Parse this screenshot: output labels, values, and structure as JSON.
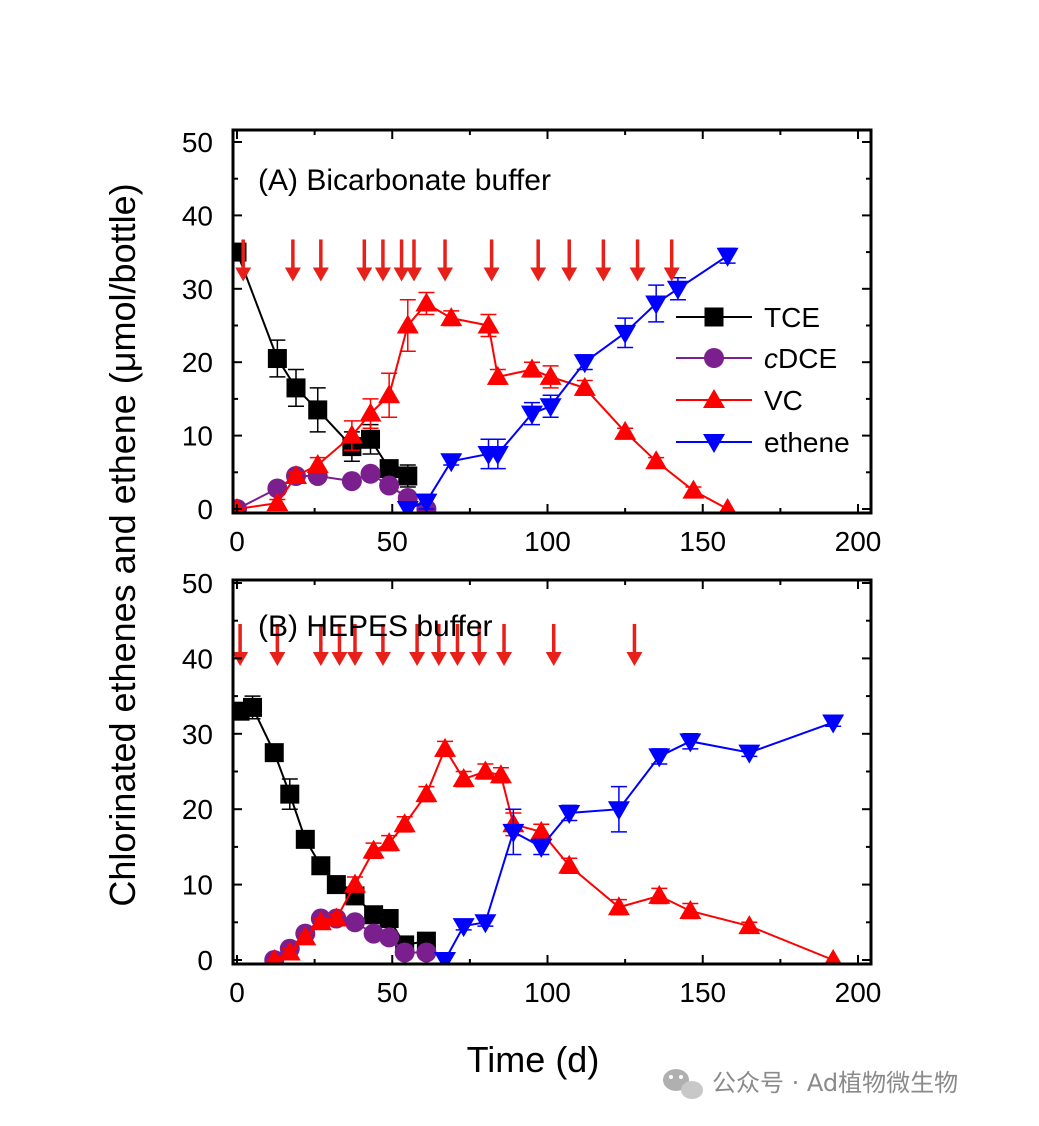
{
  "chart_data": [
    {
      "type": "line",
      "title": "(A) Bicarbonate buffer",
      "xlabel": "Time (d)",
      "ylabel": "Chlorinated ethenes and ethene (μmol/bottle)",
      "xlim": [
        0,
        200
      ],
      "ylim": [
        0,
        50
      ],
      "xticks": [
        0,
        50,
        100,
        150,
        200
      ],
      "yticks": [
        0,
        10,
        20,
        30,
        40,
        50
      ],
      "legend_position": "right",
      "series": [
        {
          "name": "TCE",
          "marker": "square",
          "color": "#000000",
          "x": [
            0,
            13,
            19,
            26,
            37,
            43,
            49,
            55
          ],
          "y": [
            35,
            20.5,
            16.5,
            13.5,
            8.5,
            9.5,
            5.5,
            4.5
          ],
          "err": [
            1,
            2.5,
            2.5,
            3,
            2,
            2,
            1,
            1.5
          ]
        },
        {
          "name": "cDCE",
          "marker": "circle",
          "color": "#7b1f8e",
          "x": [
            0,
            13,
            19,
            26,
            37,
            43,
            49,
            55,
            61
          ],
          "y": [
            0,
            2.8,
            4.5,
            4.5,
            3.8,
            4.8,
            3.2,
            1.5,
            0
          ],
          "err": [
            0,
            0.5,
            0.5,
            0.5,
            0.5,
            0.5,
            0.5,
            0.5,
            0
          ]
        },
        {
          "name": "VC",
          "marker": "triangle-up",
          "color": "#ff0000",
          "x": [
            0,
            13,
            19,
            26,
            37,
            43,
            49,
            55,
            61,
            69,
            81,
            84,
            95,
            101,
            112,
            125,
            135,
            147,
            158
          ],
          "y": [
            0,
            0.8,
            4.5,
            6,
            10,
            13,
            15.5,
            25,
            28,
            26,
            25,
            18,
            19,
            18,
            16.5,
            10.5,
            6.5,
            2.5,
            0
          ],
          "err": [
            0,
            0.5,
            0.5,
            1,
            2,
            2,
            3,
            3.5,
            1.5,
            1,
            1.5,
            1,
            1,
            1.5,
            1,
            0.5,
            0.5,
            0.5,
            0
          ]
        },
        {
          "name": "ethene",
          "marker": "triangle-down",
          "color": "#0000ff",
          "x": [
            55,
            61,
            69,
            81,
            84,
            95,
            101,
            112,
            125,
            135,
            142,
            158
          ],
          "y": [
            0,
            1,
            6.5,
            7.5,
            7.5,
            13,
            14,
            20,
            24,
            28,
            30,
            34.5
          ],
          "err": [
            0,
            1,
            0.5,
            2,
            2,
            1.5,
            1.5,
            1,
            2,
            2.5,
            1.5,
            1
          ]
        }
      ],
      "arrows_x": [
        2,
        18,
        27,
        41,
        47,
        53,
        57,
        67,
        82,
        97,
        107,
        118,
        129,
        140
      ]
    },
    {
      "type": "line",
      "title": "(B) HEPES buffer",
      "xlabel": "Time (d)",
      "ylabel": "Chlorinated ethenes and ethene (μmol/bottle)",
      "xlim": [
        0,
        200
      ],
      "ylim": [
        0,
        50
      ],
      "xticks": [
        0,
        50,
        100,
        150,
        200
      ],
      "yticks": [
        0,
        10,
        20,
        30,
        40,
        50
      ],
      "series": [
        {
          "name": "TCE",
          "marker": "square",
          "color": "#000000",
          "x": [
            1,
            5,
            12,
            17,
            22,
            27,
            32,
            38,
            44,
            49,
            54,
            61
          ],
          "y": [
            33,
            33.5,
            27.5,
            22,
            16,
            12.5,
            10,
            8.5,
            6,
            5.5,
            2,
            2.5
          ],
          "err": [
            1,
            1.5,
            1,
            2,
            1,
            1,
            0.5,
            1,
            0.5,
            0.5,
            0.5,
            0.5
          ]
        },
        {
          "name": "cDCE",
          "marker": "circle",
          "color": "#7b1f8e",
          "x": [
            12,
            17,
            22,
            27,
            32,
            38,
            44,
            49,
            54,
            61
          ],
          "y": [
            0,
            1.5,
            3.5,
            5.5,
            5.5,
            5,
            3.5,
            3,
            1,
            1
          ],
          "err": [
            0,
            0.5,
            0.5,
            0.5,
            0.5,
            0.5,
            0.5,
            0.5,
            0.5,
            0.5
          ]
        },
        {
          "name": "VC",
          "marker": "triangle-up",
          "color": "#ff0000",
          "x": [
            12,
            17,
            22,
            27,
            32,
            38,
            44,
            49,
            54,
            61,
            67,
            73,
            80,
            85,
            89,
            98,
            107,
            123,
            136,
            146,
            165,
            192
          ],
          "y": [
            0,
            1,
            3,
            5,
            5.5,
            10,
            14.5,
            15.5,
            18,
            22,
            28,
            24,
            25,
            24.5,
            18,
            17,
            12.5,
            7,
            8.5,
            6.5,
            4.5,
            0
          ],
          "err": [
            0,
            0.5,
            0.5,
            0.5,
            0.5,
            1,
            1,
            1,
            1,
            1,
            1,
            1,
            1,
            1,
            1.5,
            1,
            1,
            1,
            1,
            1,
            0.5,
            0
          ]
        },
        {
          "name": "ethene",
          "marker": "triangle-down",
          "color": "#0000ff",
          "x": [
            67,
            73,
            80,
            89,
            98,
            107,
            123,
            136,
            146,
            165,
            192
          ],
          "y": [
            0,
            4.5,
            5,
            17,
            15,
            19.5,
            20,
            27,
            29,
            27.5,
            31.5
          ],
          "err": [
            0,
            0.5,
            0.5,
            3,
            1,
            1,
            3,
            1,
            1,
            0.5,
            0.5
          ]
        }
      ],
      "arrows_x": [
        1,
        13,
        27,
        33,
        38,
        47,
        58,
        65,
        71,
        78,
        86,
        102,
        128
      ]
    }
  ],
  "watermark": {
    "text": "公众号 · Ad植物微生物",
    "icon": "wechat-icon"
  }
}
